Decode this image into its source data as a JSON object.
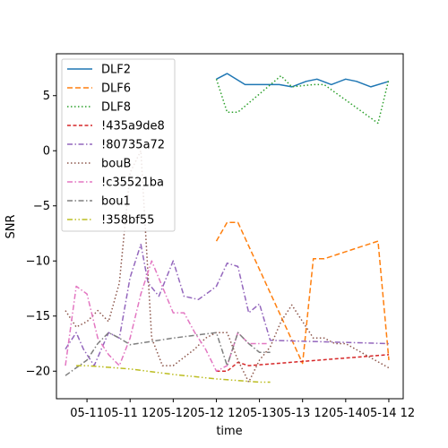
{
  "chart_data": {
    "type": "line",
    "title": "",
    "xlabel": "time",
    "ylabel": "SNR",
    "x_tick_labels": [
      "05-11",
      "05-11 12",
      "05-12",
      "05-12 12",
      "05-13",
      "05-13 12",
      "05-14",
      "05-14 12"
    ],
    "x_ticks": [
      0,
      12,
      24,
      36,
      48,
      60,
      72,
      84
    ],
    "x_unit": "hours from 05-11 00:00",
    "xlim": [
      -8.5,
      88
    ],
    "ylim": [
      -22.5,
      8.8
    ],
    "y_ticks": [
      5,
      0,
      -5,
      -10,
      -15,
      -20
    ],
    "y_tick_labels": [
      "5",
      "0",
      "−5",
      "−10",
      "−15",
      "−20"
    ],
    "grid": false,
    "legend_position": "top-left",
    "series": [
      {
        "name": "DLF2",
        "color": "#1f77b4",
        "dash": "",
        "width": 1.5,
        "x": [
          36,
          39,
          44,
          47,
          51,
          53.5,
          57,
          61,
          64,
          68,
          72,
          75,
          79,
          84
        ],
        "y": [
          6.5,
          7,
          6,
          6,
          6,
          6,
          5.8,
          6.3,
          6.5,
          6,
          6.5,
          6.3,
          5.8,
          6.3
        ]
      },
      {
        "name": "DLF6",
        "color": "#ff7f0e",
        "dash": "6,3",
        "width": 1.5,
        "x": [
          36,
          39,
          42,
          60,
          63,
          66,
          81,
          84
        ],
        "y": [
          -8.2,
          -6.5,
          -6.5,
          -19.3,
          -9.8,
          -9.8,
          -8.2,
          -19
        ]
      },
      {
        "name": "DLF8",
        "color": "#2ca02c",
        "dash": "1.5,2.5",
        "width": 1.5,
        "x": [
          36,
          39,
          42,
          54,
          57,
          63,
          66,
          81,
          84
        ],
        "y": [
          6.5,
          3.5,
          3.5,
          6.8,
          5.8,
          6,
          6,
          2.5,
          6.5
        ]
      },
      {
        "name": "!435a9de8",
        "color": "#d62728",
        "dash": "4,2.5",
        "width": 1.5,
        "x": [
          36,
          39,
          42,
          45,
          84
        ],
        "y": [
          -20,
          -20,
          -19.2,
          -19.5,
          -18.5
        ]
      },
      {
        "name": "!80735a72",
        "color": "#9467bd",
        "dash": "6,2.5,1.5,2.5",
        "width": 1.5,
        "x": [
          -6,
          -3,
          -1,
          2,
          6,
          9,
          12,
          15,
          17,
          20,
          24,
          27,
          31,
          34,
          36,
          39,
          42,
          45,
          48,
          51,
          84
        ],
        "y": [
          -18,
          -16.5,
          -18,
          -19.5,
          -16.5,
          -17,
          -11.5,
          -8.5,
          -12,
          -13.2,
          -10,
          -13.2,
          -13.5,
          -12.8,
          -12.3,
          -10.2,
          -10.5,
          -14.7,
          -13.9,
          -17.2,
          -17.5
        ]
      },
      {
        "name": "bouB",
        "color": "#8c564b",
        "dash": "1.5,2.5",
        "width": 1.5,
        "x": [
          -6,
          -3,
          0,
          3,
          6,
          9,
          12,
          15,
          18,
          21,
          24,
          30,
          33,
          36,
          39,
          42,
          45,
          48,
          51,
          54,
          57,
          60,
          63,
          66,
          69,
          72,
          84
        ],
        "y": [
          -14.5,
          -16,
          -15.5,
          -14.5,
          -15.5,
          -12,
          -2,
          0,
          -17,
          -19.5,
          -19.5,
          -18,
          -17,
          -16.5,
          -16.5,
          -19,
          -21,
          -19,
          -17.8,
          -15.5,
          -14,
          -15.5,
          -17,
          -17,
          -17.5,
          -17.5,
          -19.7
        ]
      },
      {
        "name": "!c35521ba",
        "color": "#e377c2",
        "dash": "6,2.5,1.5,2.5",
        "width": 1.5,
        "x": [
          -6,
          -3,
          0,
          3,
          6,
          9,
          12,
          15,
          18,
          24,
          27,
          30,
          33,
          36,
          39,
          42,
          45,
          48,
          50
        ],
        "y": [
          -19.5,
          -12.3,
          -13,
          -17,
          -18.5,
          -19.5,
          -17,
          -13,
          -10,
          -14.7,
          -14.7,
          -16.5,
          -18,
          -20,
          -19.5,
          -16.5,
          -17.5,
          -17.5,
          -17.5
        ]
      },
      {
        "name": "bou1",
        "color": "#7f7f7f",
        "dash": "6,2.5,1.5,2.5",
        "width": 1.5,
        "x": [
          -6,
          0,
          3,
          6,
          9,
          12,
          24,
          36,
          39,
          42,
          45,
          48,
          51
        ],
        "y": [
          -20.4,
          -19,
          -17.5,
          -16.5,
          -17,
          -17.6,
          -17,
          -16.5,
          -19.5,
          -16.5,
          -17.5,
          -18.3,
          -18.3
        ]
      },
      {
        "name": "!358bf55",
        "color": "#bcbd22",
        "dash": "6,2.5,1.5,2.5,1.5,2.5",
        "width": 1.5,
        "x": [
          -3,
          0,
          12,
          24,
          36,
          48,
          51
        ],
        "y": [
          -19.5,
          -19.5,
          -19.8,
          -20.3,
          -20.7,
          -21,
          -21
        ]
      }
    ]
  }
}
